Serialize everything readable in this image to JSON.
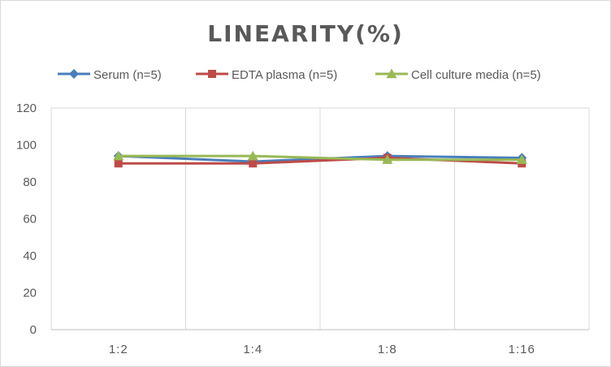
{
  "chart_data": {
    "type": "line",
    "title": "LINEARITY(%)",
    "xlabel": "",
    "ylabel": "",
    "categories": [
      "1:2",
      "1:4",
      "1:8",
      "1:16"
    ],
    "ylim": [
      0,
      120
    ],
    "yticks": [
      0,
      20,
      40,
      60,
      80,
      100,
      120
    ],
    "grid": "vertical",
    "legend_position": "top",
    "series": [
      {
        "name": "Serum (n=5)",
        "values": [
          94,
          91,
          94,
          93
        ],
        "color": "#4a7ebb",
        "marker": "diamond"
      },
      {
        "name": "EDTA plasma (n=5)",
        "values": [
          90,
          90,
          93,
          90
        ],
        "color": "#be4b48",
        "marker": "square"
      },
      {
        "name": "Cell culture media (n=5)",
        "values": [
          94,
          94,
          92,
          92
        ],
        "color": "#98b954",
        "marker": "triangle"
      }
    ]
  }
}
